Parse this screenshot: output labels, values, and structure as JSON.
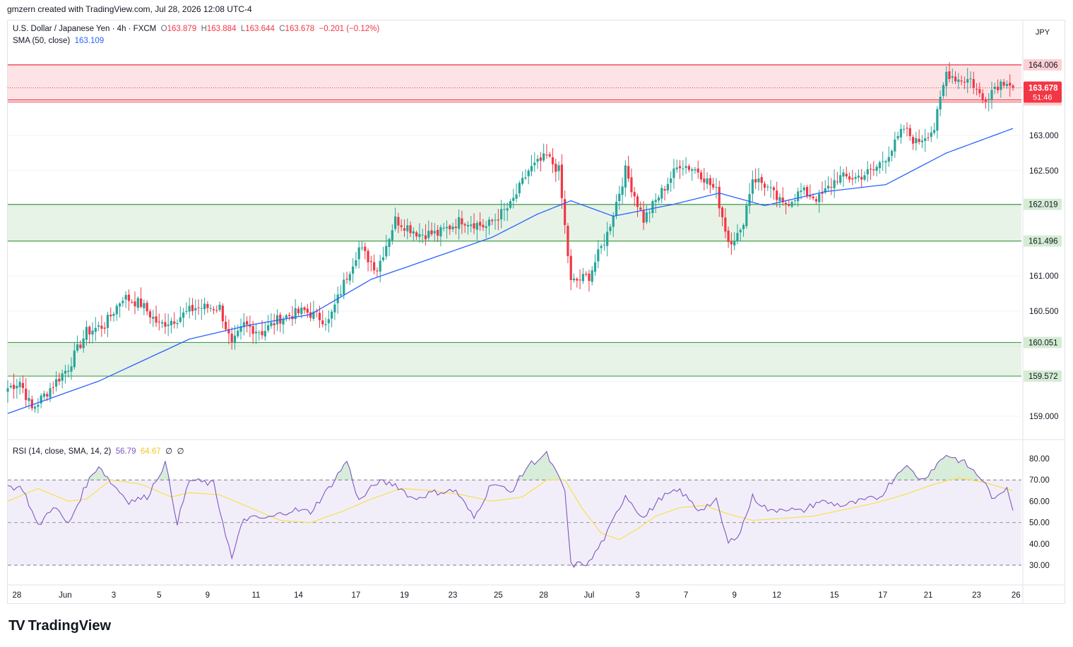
{
  "header": {
    "attribution": "gmzern created with TradingView.com, Jul 28, 2026 12:08 UTC-4"
  },
  "main_legend": {
    "symbol": "U.S. Dollar / Japanese Yen · 4h · FXCM",
    "open_label": "O",
    "open": "163.879",
    "high_label": "H",
    "high": "163.884",
    "low_label": "L",
    "low": "163.644",
    "close_label": "C",
    "close": "163.678",
    "change": "−0.201 (−0.12%)"
  },
  "sma_legend": {
    "label": "SMA (50, close)",
    "value": "163.109"
  },
  "rsi_legend": {
    "label": "RSI (14, close, SMA, 14, 2)",
    "rsi": "56.79",
    "rsi_ma": "64.67",
    "extra1": "∅",
    "extra2": "∅"
  },
  "currency_button": "JPY",
  "footer": {
    "brand": "TradingView",
    "logo": "TV"
  },
  "colors": {
    "up": "#26a69a",
    "down": "#f23645",
    "sma": "#2962ff",
    "rsi": "#7e57c2",
    "rsi_ma": "#f7e15a",
    "resistance": "#f23645",
    "support": "#43a047"
  },
  "chart_data": [
    {
      "type": "candlestick",
      "title": "U.S. Dollar / Japanese Yen · 4h · FXCM",
      "ylim": [
        158.7,
        164.5
      ],
      "ytick_labels": [
        "159.000",
        "160.500",
        "161.000",
        "162.500",
        "163.000"
      ],
      "x_ticks": [
        "28",
        "Jun",
        "3",
        "5",
        "9",
        "11",
        "14",
        "17",
        "19",
        "23",
        "25",
        "28",
        "Jul",
        "3",
        "7",
        "9",
        "12",
        "15",
        "17",
        "21",
        "23",
        "26"
      ],
      "zones": [
        {
          "name": "resistance",
          "low": 163.506,
          "high": 164.006,
          "label_low": "163.506",
          "label_high": "164.006"
        },
        {
          "name": "support-upper",
          "low": 161.496,
          "high": 162.019,
          "label_low": "161.496",
          "label_high": "162.019"
        },
        {
          "name": "support-lower",
          "low": 159.572,
          "high": 160.051,
          "label_low": "159.572",
          "label_high": "160.051"
        }
      ],
      "last_price": {
        "value": 163.678,
        "label": "163.678",
        "countdown": "51:46"
      },
      "close_anchors": [
        [
          0,
          159.4
        ],
        [
          4,
          159.5
        ],
        [
          8,
          159.1
        ],
        [
          12,
          159.3
        ],
        [
          16,
          159.5
        ],
        [
          20,
          159.7
        ],
        [
          26,
          160.2
        ],
        [
          32,
          160.3
        ],
        [
          38,
          160.7
        ],
        [
          44,
          160.6
        ],
        [
          50,
          160.3
        ],
        [
          56,
          160.4
        ],
        [
          62,
          160.55
        ],
        [
          70,
          160.55
        ],
        [
          74,
          160.0
        ],
        [
          78,
          160.3
        ],
        [
          84,
          160.2
        ],
        [
          90,
          160.4
        ],
        [
          98,
          160.5
        ],
        [
          106,
          160.35
        ],
        [
          112,
          161.0
        ],
        [
          116,
          161.4
        ],
        [
          122,
          161.1
        ],
        [
          128,
          161.8
        ],
        [
          136,
          161.6
        ],
        [
          142,
          161.6
        ],
        [
          150,
          161.8
        ],
        [
          158,
          161.7
        ],
        [
          166,
          162.0
        ],
        [
          172,
          162.5
        ],
        [
          178,
          162.7
        ],
        [
          182,
          162.5
        ],
        [
          186,
          160.9
        ],
        [
          192,
          161.0
        ],
        [
          198,
          161.6
        ],
        [
          204,
          162.5
        ],
        [
          210,
          161.8
        ],
        [
          216,
          162.2
        ],
        [
          222,
          162.6
        ],
        [
          228,
          162.5
        ],
        [
          234,
          162.2
        ],
        [
          238,
          161.5
        ],
        [
          242,
          161.6
        ],
        [
          246,
          162.4
        ],
        [
          250,
          162.3
        ],
        [
          256,
          162.0
        ],
        [
          262,
          162.2
        ],
        [
          268,
          162.1
        ],
        [
          274,
          162.4
        ],
        [
          280,
          162.4
        ],
        [
          286,
          162.5
        ],
        [
          292,
          162.8
        ],
        [
          296,
          163.1
        ],
        [
          300,
          162.9
        ],
        [
          306,
          163.1
        ],
        [
          310,
          163.9
        ],
        [
          314,
          163.8
        ],
        [
          318,
          163.8
        ],
        [
          322,
          163.5
        ],
        [
          326,
          163.7
        ],
        [
          330,
          163.8
        ],
        [
          332,
          163.68
        ]
      ],
      "sma_anchors": [
        [
          0,
          159.04
        ],
        [
          30,
          159.5
        ],
        [
          60,
          160.1
        ],
        [
          80,
          160.3
        ],
        [
          100,
          160.45
        ],
        [
          120,
          160.95
        ],
        [
          140,
          161.25
        ],
        [
          160,
          161.55
        ],
        [
          175,
          161.88
        ],
        [
          186,
          162.07
        ],
        [
          200,
          161.85
        ],
        [
          220,
          162.02
        ],
        [
          235,
          162.18
        ],
        [
          250,
          162.0
        ],
        [
          270,
          162.2
        ],
        [
          290,
          162.3
        ],
        [
          310,
          162.75
        ],
        [
          332,
          163.1
        ]
      ]
    },
    {
      "type": "line",
      "title": "RSI (14, close, SMA, 14, 2)",
      "ylim": [
        20,
        87
      ],
      "ytick_labels": [
        "80.00",
        "70.00",
        "60.00",
        "50.00",
        "40.00",
        "30.00"
      ],
      "bands": {
        "upper": 70,
        "middle": 50,
        "lower": 30
      },
      "series": [
        {
          "name": "RSI",
          "anchors": [
            [
              0,
              67
            ],
            [
              5,
              66
            ],
            [
              10,
              48
            ],
            [
              15,
              58
            ],
            [
              20,
              49
            ],
            [
              26,
              68
            ],
            [
              30,
              77
            ],
            [
              34,
              69
            ],
            [
              40,
              60
            ],
            [
              46,
              62
            ],
            [
              52,
              78
            ],
            [
              56,
              50
            ],
            [
              60,
              70
            ],
            [
              68,
              68
            ],
            [
              74,
              33
            ],
            [
              78,
              52
            ],
            [
              86,
              52
            ],
            [
              94,
              56
            ],
            [
              100,
              55
            ],
            [
              106,
              66
            ],
            [
              112,
              79
            ],
            [
              116,
              60
            ],
            [
              122,
              69
            ],
            [
              128,
              68
            ],
            [
              134,
              61
            ],
            [
              140,
              64
            ],
            [
              148,
              65
            ],
            [
              154,
              52
            ],
            [
              160,
              69
            ],
            [
              166,
              64
            ],
            [
              172,
              77
            ],
            [
              178,
              82
            ],
            [
              184,
              65
            ],
            [
              186,
              30
            ],
            [
              192,
              31
            ],
            [
              198,
              45
            ],
            [
              204,
              63
            ],
            [
              210,
              52
            ],
            [
              216,
              62
            ],
            [
              222,
              65
            ],
            [
              228,
              56
            ],
            [
              234,
              60
            ],
            [
              238,
              40
            ],
            [
              242,
              46
            ],
            [
              246,
              62
            ],
            [
              252,
              55
            ],
            [
              256,
              57
            ],
            [
              262,
              55
            ],
            [
              268,
              60
            ],
            [
              276,
              58
            ],
            [
              282,
              60
            ],
            [
              288,
              62
            ],
            [
              296,
              77
            ],
            [
              302,
              70
            ],
            [
              306,
              76
            ],
            [
              310,
              82
            ],
            [
              316,
              78
            ],
            [
              322,
              70
            ],
            [
              326,
              60
            ],
            [
              330,
              67
            ],
            [
              332,
              57
            ]
          ]
        },
        {
          "name": "RSI MA",
          "anchors": [
            [
              0,
              60
            ],
            [
              10,
              66
            ],
            [
              20,
              60
            ],
            [
              26,
              61
            ],
            [
              34,
              70
            ],
            [
              44,
              68
            ],
            [
              54,
              62
            ],
            [
              60,
              64
            ],
            [
              70,
              63
            ],
            [
              80,
              57
            ],
            [
              90,
              51
            ],
            [
              100,
              50
            ],
            [
              110,
              55
            ],
            [
              120,
              61
            ],
            [
              130,
              66
            ],
            [
              140,
              65
            ],
            [
              150,
              63
            ],
            [
              160,
              60
            ],
            [
              170,
              62
            ],
            [
              178,
              70
            ],
            [
              184,
              70
            ],
            [
              190,
              56
            ],
            [
              196,
              45
            ],
            [
              202,
              42
            ],
            [
              208,
              47
            ],
            [
              214,
              53
            ],
            [
              222,
              57
            ],
            [
              230,
              58
            ],
            [
              238,
              54
            ],
            [
              246,
              51
            ],
            [
              256,
              52
            ],
            [
              266,
              53
            ],
            [
              276,
              56
            ],
            [
              286,
              59
            ],
            [
              296,
              63
            ],
            [
              306,
              68
            ],
            [
              314,
              71
            ],
            [
              322,
              69
            ],
            [
              332,
              65
            ]
          ]
        }
      ]
    }
  ]
}
